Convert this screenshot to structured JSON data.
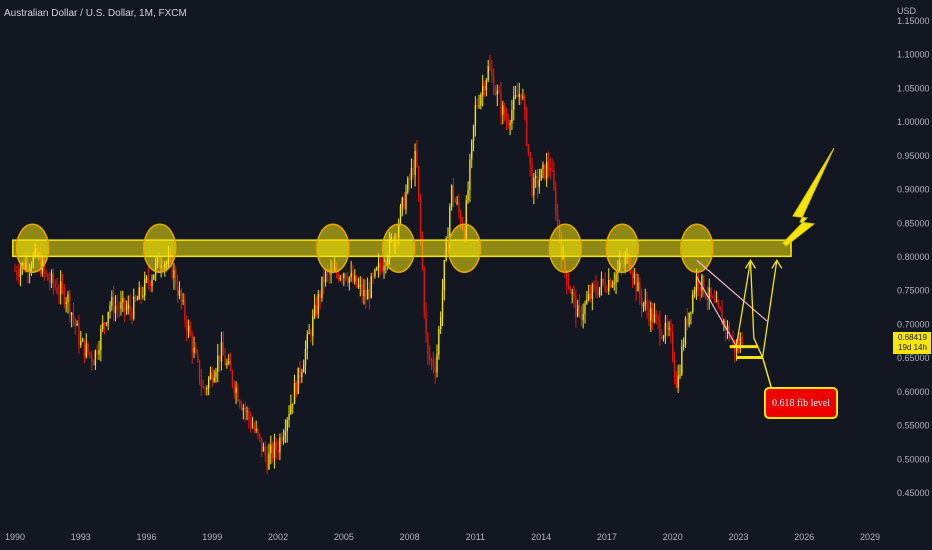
{
  "header": {
    "title": "Australian Dollar / U.S. Dollar, 1M, FXCM"
  },
  "axis": {
    "unit": "USD",
    "y_ticks": [
      "1.15000",
      "1.10000",
      "1.05000",
      "1.00000",
      "0.95000",
      "0.90000",
      "0.85000",
      "0.80000",
      "0.75000",
      "0.70000",
      "0.65000",
      "0.60000",
      "0.55000",
      "0.50000",
      "0.45000"
    ],
    "x_ticks": [
      "1990",
      "1993",
      "1996",
      "1999",
      "2002",
      "2005",
      "2008",
      "2011",
      "2014",
      "2017",
      "2020",
      "2023",
      "2026",
      "2029"
    ]
  },
  "price_tag": {
    "value": "0.68419",
    "countdown": "19d 14h"
  },
  "annotation": {
    "fib_label": "0.618 fib level"
  },
  "colors": {
    "background": "#131722",
    "bull": "#f5e50a",
    "bear": "#e8140c",
    "zone": "#f5e50a",
    "callout": "#ee0000"
  },
  "chart_data": {
    "type": "candlestick",
    "title": "Australian Dollar / U.S. Dollar, 1M, FXCM",
    "ylabel": "USD",
    "ylim": [
      0.43,
      1.16
    ],
    "xlim": [
      1989.9,
      2030.5
    ],
    "anchors": [
      [
        1990.0,
        0.78
      ],
      [
        1991.0,
        0.8
      ],
      [
        1991.4,
        0.77
      ],
      [
        1992.4,
        0.74
      ],
      [
        1993.0,
        0.67
      ],
      [
        1993.6,
        0.65
      ],
      [
        1994.3,
        0.73
      ],
      [
        1995.3,
        0.72
      ],
      [
        1996.7,
        0.8
      ],
      [
        1997.2,
        0.78
      ],
      [
        1998.0,
        0.68
      ],
      [
        1998.6,
        0.6
      ],
      [
        1999.4,
        0.66
      ],
      [
        2000.4,
        0.58
      ],
      [
        2001.5,
        0.5
      ],
      [
        2002.0,
        0.52
      ],
      [
        2003.0,
        0.63
      ],
      [
        2004.1,
        0.77
      ],
      [
        2005.0,
        0.78
      ],
      [
        2006.0,
        0.74
      ],
      [
        2007.3,
        0.83
      ],
      [
        2008.3,
        0.95
      ],
      [
        2008.8,
        0.65
      ],
      [
        2009.2,
        0.64
      ],
      [
        2009.9,
        0.9
      ],
      [
        2010.5,
        0.84
      ],
      [
        2011.0,
        1.02
      ],
      [
        2011.6,
        1.08
      ],
      [
        2012.4,
        1.0
      ],
      [
        2013.1,
        1.05
      ],
      [
        2013.6,
        0.9
      ],
      [
        2014.4,
        0.94
      ],
      [
        2015.0,
        0.79
      ],
      [
        2015.7,
        0.71
      ],
      [
        2016.4,
        0.75
      ],
      [
        2017.3,
        0.77
      ],
      [
        2018.0,
        0.8
      ],
      [
        2018.5,
        0.74
      ],
      [
        2019.3,
        0.7
      ],
      [
        2019.9,
        0.68
      ],
      [
        2020.2,
        0.61
      ],
      [
        2020.6,
        0.7
      ],
      [
        2021.1,
        0.77
      ],
      [
        2021.5,
        0.75
      ],
      [
        2022.0,
        0.72
      ],
      [
        2022.4,
        0.7
      ],
      [
        2022.9,
        0.66
      ],
      [
        2023.2,
        0.68419
      ]
    ],
    "last_price": 0.68419,
    "resistance_zone": {
      "low": 0.801,
      "high": 0.825,
      "x_start": 1989.9,
      "x_end": 2025.4
    },
    "touch_points": [
      1990.8,
      1996.6,
      2004.5,
      2007.5,
      2010.5,
      2015.1,
      2017.7,
      2021.1
    ],
    "fib_level": {
      "value": 0.651,
      "label": "0.618 fib level"
    },
    "support_level": {
      "value": 0.667
    }
  }
}
